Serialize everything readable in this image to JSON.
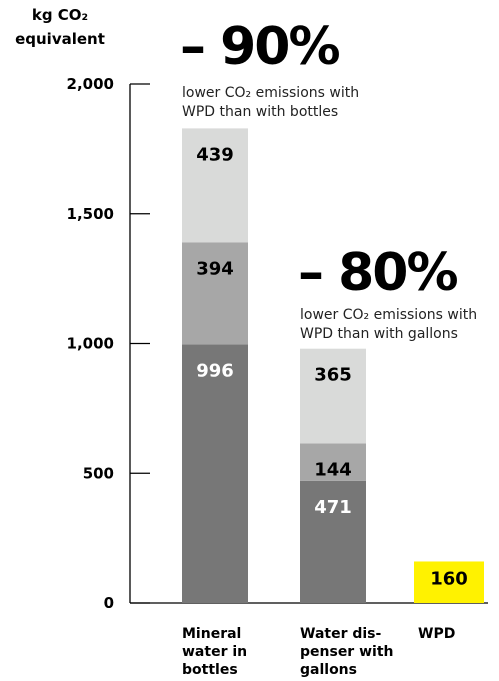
{
  "chart_data": {
    "type": "bar",
    "stacked": true,
    "ylabel_lines": [
      "kg CO₂",
      "equivalent"
    ],
    "ylim": [
      0,
      2000
    ],
    "yticks": [
      0,
      500,
      1000,
      1500,
      2000
    ],
    "ytick_labels": [
      "0",
      "500",
      "1,000",
      "1,500",
      "2,000"
    ],
    "categories": [
      [
        "Mineral",
        "water in",
        "bottles"
      ],
      [
        "Water dis-",
        "penser with",
        "gallons"
      ],
      [
        "WPD"
      ]
    ],
    "series": [
      {
        "values": [
          996,
          471,
          160
        ],
        "colors": [
          "#777777",
          "#777777",
          "#fff200"
        ]
      },
      {
        "values": [
          394,
          144,
          0
        ],
        "colors": [
          "#a7a7a7",
          "#a7a7a7",
          "#a7a7a7"
        ]
      },
      {
        "values": [
          439,
          365,
          0
        ],
        "colors": [
          "#d9dad9",
          "#d9dad9",
          "#d9dad9"
        ]
      }
    ],
    "annotations": [
      {
        "big": "– 90%",
        "lines": [
          "lower CO₂ emissions with",
          "WPD than with bottles"
        ]
      },
      {
        "big": "– 80%",
        "lines": [
          "lower CO₂ emissions with",
          "WPD than with gallons"
        ]
      }
    ],
    "grid": false,
    "legend": "none"
  }
}
